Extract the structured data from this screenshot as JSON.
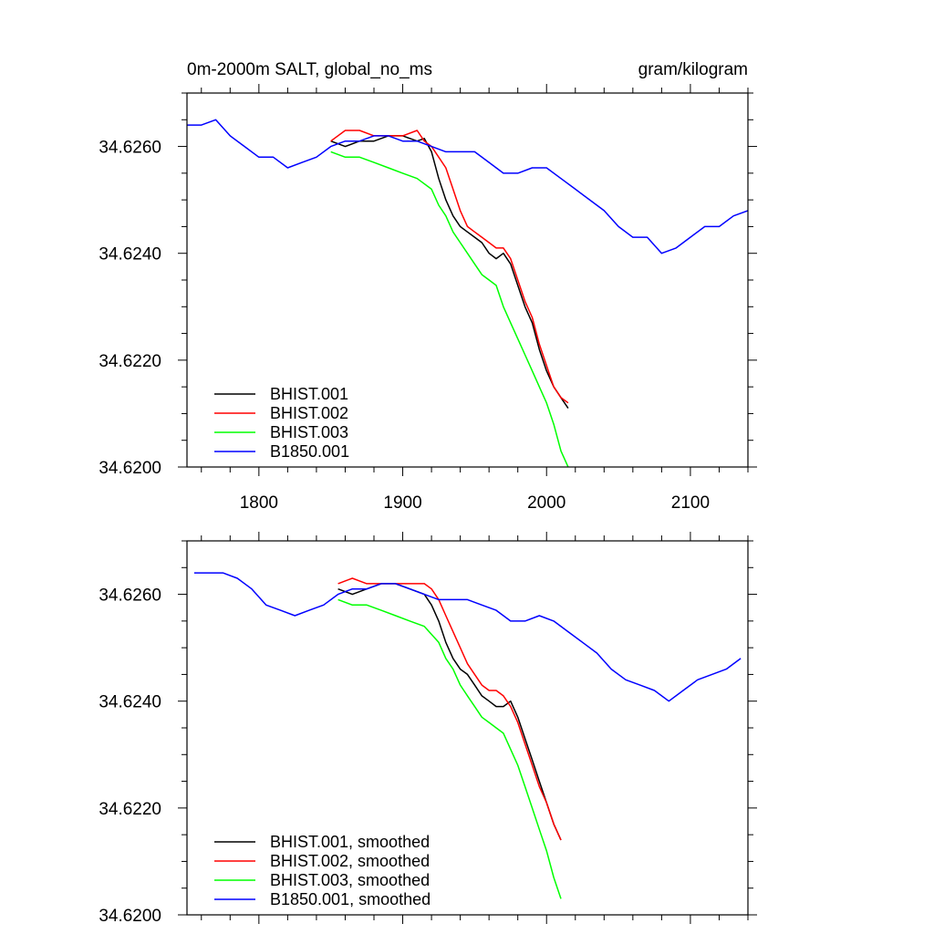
{
  "chart_data": [
    {
      "type": "line",
      "title": "0m-2000m SALT, global_no_ms",
      "units": "gram/kilogram",
      "xlim": [
        1750,
        2140
      ],
      "ylim": [
        34.62,
        34.627
      ],
      "xticks": [
        1800,
        1900,
        2000,
        2100
      ],
      "yticks": [
        34.62,
        34.622,
        34.624,
        34.626
      ],
      "ytick_labels": [
        "34.6200",
        "34.6220",
        "34.6240",
        "34.6260"
      ],
      "xtick_labels": [
        "1800",
        "1900",
        "2000",
        "2100"
      ],
      "legend_position": "bottom-left",
      "series": [
        {
          "name": "BHIST.001",
          "color": "#000000",
          "x": [
            1850,
            1860,
            1870,
            1880,
            1890,
            1900,
            1910,
            1915,
            1920,
            1925,
            1930,
            1935,
            1940,
            1945,
            1950,
            1955,
            1960,
            1965,
            1970,
            1975,
            1980,
            1985,
            1990,
            1995,
            2000,
            2005,
            2010,
            2015
          ],
          "y": [
            34.6261,
            34.626,
            34.6261,
            34.6261,
            34.6262,
            34.6262,
            34.6261,
            34.62615,
            34.6259,
            34.6254,
            34.625,
            34.6247,
            34.6245,
            34.6244,
            34.6243,
            34.6242,
            34.624,
            34.6239,
            34.624,
            34.6238,
            34.6234,
            34.623,
            34.6227,
            34.6222,
            34.6218,
            34.6215,
            34.6213,
            34.6211
          ]
        },
        {
          "name": "BHIST.002",
          "color": "#ff0000",
          "x": [
            1850,
            1860,
            1870,
            1880,
            1890,
            1900,
            1910,
            1915,
            1920,
            1925,
            1930,
            1935,
            1940,
            1945,
            1950,
            1955,
            1960,
            1965,
            1970,
            1975,
            1980,
            1985,
            1990,
            1995,
            2000,
            2005,
            2010,
            2015
          ],
          "y": [
            34.6261,
            34.6263,
            34.6263,
            34.6262,
            34.6262,
            34.6262,
            34.6263,
            34.6261,
            34.626,
            34.6258,
            34.6256,
            34.6252,
            34.6248,
            34.6245,
            34.6244,
            34.6243,
            34.6242,
            34.6241,
            34.6241,
            34.6239,
            34.6235,
            34.6231,
            34.6228,
            34.6223,
            34.6219,
            34.6215,
            34.6213,
            34.6212
          ]
        },
        {
          "name": "BHIST.003",
          "color": "#00ff00",
          "x": [
            1850,
            1860,
            1870,
            1880,
            1890,
            1900,
            1910,
            1920,
            1925,
            1930,
            1935,
            1940,
            1945,
            1950,
            1955,
            1960,
            1965,
            1970,
            1975,
            1980,
            1985,
            1990,
            1995,
            2000,
            2005,
            2010,
            2015
          ],
          "y": [
            34.6259,
            34.6258,
            34.6258,
            34.6257,
            34.6256,
            34.6255,
            34.6254,
            34.6252,
            34.6249,
            34.6247,
            34.6244,
            34.6242,
            34.624,
            34.6238,
            34.6236,
            34.6235,
            34.6234,
            34.623,
            34.6227,
            34.6224,
            34.6221,
            34.6218,
            34.6215,
            34.6212,
            34.6208,
            34.6203,
            34.62
          ]
        },
        {
          "name": "B1850.001",
          "color": "#0000ff",
          "x": [
            1750,
            1760,
            1770,
            1780,
            1790,
            1800,
            1810,
            1820,
            1830,
            1840,
            1850,
            1860,
            1870,
            1880,
            1890,
            1900,
            1910,
            1920,
            1930,
            1940,
            1950,
            1960,
            1970,
            1980,
            1990,
            2000,
            2010,
            2020,
            2030,
            2040,
            2050,
            2060,
            2070,
            2080,
            2090,
            2100,
            2110,
            2120,
            2130,
            2140
          ],
          "y": [
            34.6264,
            34.6264,
            34.6265,
            34.6262,
            34.626,
            34.6258,
            34.6258,
            34.6256,
            34.6257,
            34.6258,
            34.626,
            34.6261,
            34.6261,
            34.6262,
            34.6262,
            34.6261,
            34.6261,
            34.626,
            34.6259,
            34.6259,
            34.6259,
            34.6257,
            34.6255,
            34.6255,
            34.6256,
            34.6256,
            34.6254,
            34.6252,
            34.625,
            34.6248,
            34.6245,
            34.6243,
            34.6243,
            34.624,
            34.6241,
            34.6243,
            34.6245,
            34.6245,
            34.6247,
            34.6248
          ]
        }
      ]
    },
    {
      "type": "line",
      "xlim": [
        1750,
        2140
      ],
      "ylim": [
        34.62,
        34.627
      ],
      "xticks": [
        1800,
        1900,
        2000,
        2100
      ],
      "yticks": [
        34.62,
        34.622,
        34.624,
        34.626
      ],
      "ytick_labels": [
        "34.6200",
        "34.6220",
        "34.6240",
        "34.6260"
      ],
      "legend_position": "bottom-left",
      "series": [
        {
          "name": "BHIST.001, smoothed",
          "color": "#000000",
          "x": [
            1855,
            1865,
            1875,
            1885,
            1895,
            1905,
            1915,
            1920,
            1925,
            1930,
            1935,
            1940,
            1945,
            1950,
            1955,
            1960,
            1965,
            1970,
            1975,
            1980,
            1985,
            1990,
            1995,
            2000,
            2005,
            2010
          ],
          "y": [
            34.6261,
            34.626,
            34.6261,
            34.6262,
            34.6262,
            34.6261,
            34.626,
            34.6258,
            34.6255,
            34.6251,
            34.6248,
            34.6246,
            34.6245,
            34.6243,
            34.6241,
            34.624,
            34.6239,
            34.6239,
            34.624,
            34.6237,
            34.6233,
            34.6229,
            34.6225,
            34.6221,
            34.6217,
            34.6214
          ]
        },
        {
          "name": "BHIST.002, smoothed",
          "color": "#ff0000",
          "x": [
            1855,
            1865,
            1875,
            1885,
            1895,
            1905,
            1915,
            1920,
            1925,
            1930,
            1935,
            1940,
            1945,
            1950,
            1955,
            1960,
            1965,
            1970,
            1975,
            1980,
            1985,
            1990,
            1995,
            2000,
            2005,
            2010
          ],
          "y": [
            34.6262,
            34.6263,
            34.6262,
            34.6262,
            34.6262,
            34.6262,
            34.6262,
            34.6261,
            34.6259,
            34.6256,
            34.6253,
            34.625,
            34.6247,
            34.6245,
            34.6243,
            34.6242,
            34.6242,
            34.6241,
            34.6239,
            34.6236,
            34.6232,
            34.6228,
            34.6224,
            34.6221,
            34.6217,
            34.6214
          ]
        },
        {
          "name": "BHIST.003, smoothed",
          "color": "#00ff00",
          "x": [
            1855,
            1865,
            1875,
            1885,
            1895,
            1905,
            1915,
            1925,
            1930,
            1935,
            1940,
            1945,
            1950,
            1955,
            1960,
            1965,
            1970,
            1975,
            1980,
            1985,
            1990,
            1995,
            2000,
            2005,
            2010
          ],
          "y": [
            34.6259,
            34.6258,
            34.6258,
            34.6257,
            34.6256,
            34.6255,
            34.6254,
            34.6251,
            34.6248,
            34.6246,
            34.6243,
            34.6241,
            34.6239,
            34.6237,
            34.6236,
            34.6235,
            34.6234,
            34.6231,
            34.6228,
            34.6224,
            34.622,
            34.6216,
            34.6212,
            34.6207,
            34.6203
          ]
        },
        {
          "name": "B1850.001, smoothed",
          "color": "#0000ff",
          "x": [
            1755,
            1765,
            1775,
            1785,
            1795,
            1805,
            1815,
            1825,
            1835,
            1845,
            1855,
            1865,
            1875,
            1885,
            1895,
            1905,
            1915,
            1925,
            1935,
            1945,
            1955,
            1965,
            1975,
            1985,
            1995,
            2005,
            2015,
            2025,
            2035,
            2045,
            2055,
            2065,
            2075,
            2085,
            2095,
            2105,
            2115,
            2125,
            2135
          ],
          "y": [
            34.6264,
            34.6264,
            34.6264,
            34.6263,
            34.6261,
            34.6258,
            34.6257,
            34.6256,
            34.6257,
            34.6258,
            34.626,
            34.6261,
            34.6261,
            34.6262,
            34.6262,
            34.6261,
            34.626,
            34.6259,
            34.6259,
            34.6259,
            34.6258,
            34.6257,
            34.6255,
            34.6255,
            34.6256,
            34.6255,
            34.6253,
            34.6251,
            34.6249,
            34.6246,
            34.6244,
            34.6243,
            34.6242,
            34.624,
            34.6242,
            34.6244,
            34.6245,
            34.6246,
            34.6248
          ]
        }
      ]
    }
  ]
}
